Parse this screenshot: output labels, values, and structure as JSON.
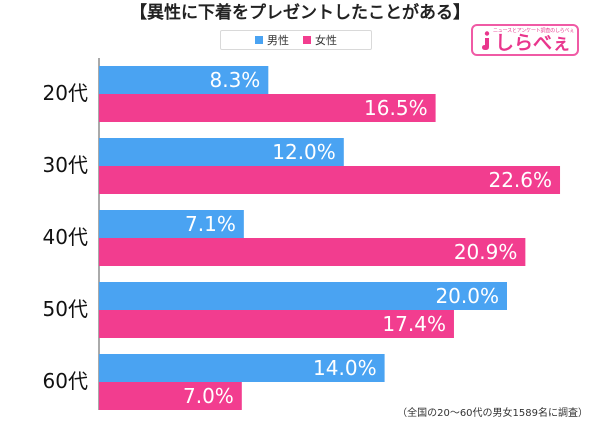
{
  "title": "【異性に下着をプレゼントしたことがある】",
  "legend": [
    {
      "label": "男性",
      "color": "#4aa3f2"
    },
    {
      "label": "女性",
      "color": "#f23d8f"
    }
  ],
  "logo": {
    "text": "しらべぇ",
    "tagline": "ニュースとアンケート調査のしらべぇ",
    "color": "#e9368d"
  },
  "footnote": "（全国の20～60代の男女1589名に調査）",
  "chart_data": {
    "type": "bar",
    "orientation": "horizontal",
    "title": "【異性に下着をプレゼントしたことがある】",
    "categories": [
      "20代",
      "30代",
      "40代",
      "50代",
      "60代"
    ],
    "series": [
      {
        "name": "男性",
        "color": "#4aa3f2",
        "values": [
          8.3,
          12.0,
          7.1,
          20.0,
          14.0
        ],
        "labels": [
          "8.3%",
          "12.0%",
          "7.1%",
          "20.0%",
          "14.0%"
        ]
      },
      {
        "name": "女性",
        "color": "#f23d8f",
        "values": [
          16.5,
          22.6,
          20.9,
          17.4,
          7.0
        ],
        "labels": [
          "16.5%",
          "22.6%",
          "20.9%",
          "17.4%",
          "7.0%"
        ]
      }
    ],
    "xlim": [
      0,
      25
    ],
    "legend": "top",
    "grid": false
  }
}
